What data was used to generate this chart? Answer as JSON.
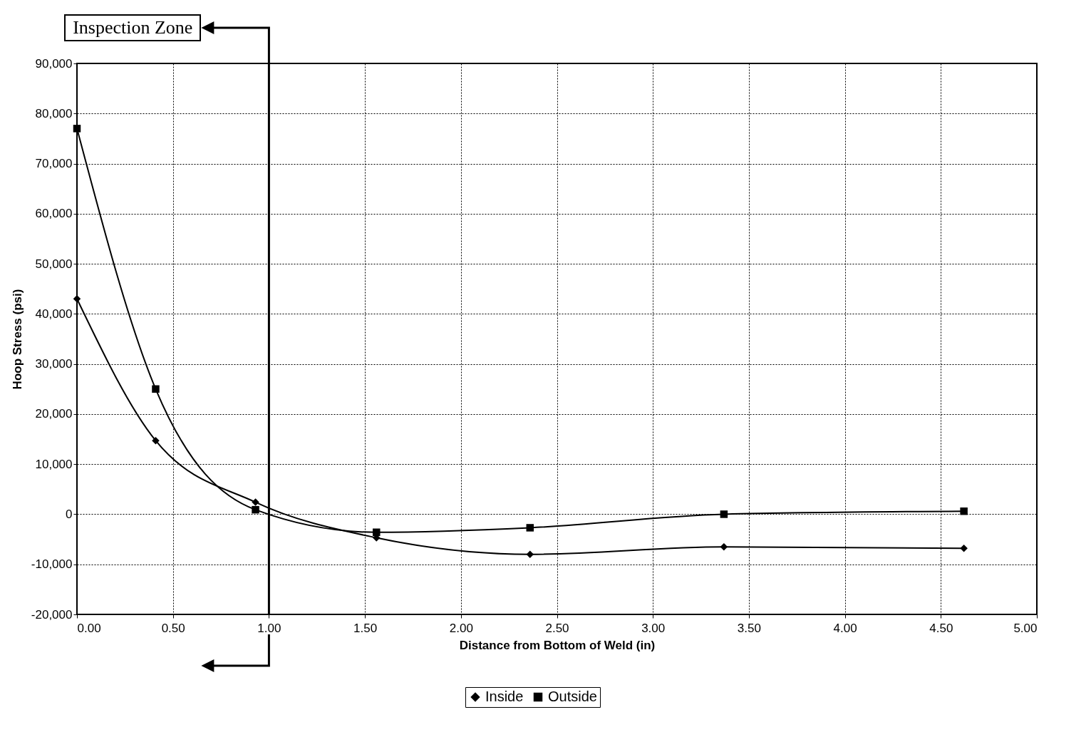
{
  "chart_data": {
    "type": "line",
    "xlabel": "Distance from Bottom of Weld (in)",
    "ylabel": "Hoop Stress (psi)",
    "series": [
      {
        "name": "Inside",
        "color": "#000000",
        "marker": "diamond",
        "x": [
          0,
          0.41,
          0.93,
          1.56,
          2.36,
          3.37,
          4.62
        ],
        "values": [
          43000,
          14700,
          2400,
          -4700,
          -8000,
          -6500,
          -6800
        ]
      },
      {
        "name": "Outside",
        "color": "#000000",
        "marker": "square",
        "x": [
          0,
          0.41,
          0.93,
          1.56,
          2.36,
          3.37,
          4.62
        ],
        "values": [
          77000,
          25000,
          900,
          -3600,
          -2700,
          0,
          600
        ]
      }
    ],
    "xlim": [
      0,
      5
    ],
    "xticks": [
      {
        "value": 0,
        "label": "0.00"
      },
      {
        "value": 0.5,
        "label": "0.50"
      },
      {
        "value": 1,
        "label": "1.00"
      },
      {
        "value": 1.5,
        "label": "1.50"
      },
      {
        "value": 2,
        "label": "2.00"
      },
      {
        "value": 2.5,
        "label": "2.50"
      },
      {
        "value": 3,
        "label": "3.00"
      },
      {
        "value": 3.5,
        "label": "3.50"
      },
      {
        "value": 4,
        "label": "4.00"
      },
      {
        "value": 4.5,
        "label": "4.50"
      },
      {
        "value": 5,
        "label": "5.00"
      }
    ],
    "ylim": [
      -20000,
      90000
    ],
    "yticks": [
      {
        "value": -20000,
        "label": "-20,000"
      },
      {
        "value": -10000,
        "label": "-10,000"
      },
      0,
      {
        "value": 10000,
        "label": "10,000"
      },
      {
        "value": 20000,
        "label": "20,000"
      },
      {
        "value": 30000,
        "label": "30,000"
      },
      {
        "value": 40000,
        "label": "40,000"
      },
      {
        "value": 50000,
        "label": "50,000"
      },
      {
        "value": 60000,
        "label": "60,000"
      },
      {
        "value": 70000,
        "label": "70,000"
      },
      {
        "value": 80000,
        "label": "80,000"
      },
      {
        "value": 90000,
        "label": "90,000"
      }
    ],
    "ref_lines": [
      {
        "axis": "x",
        "value": 1,
        "label": "Inspection Zone",
        "color": "#000000"
      }
    ],
    "grid": true,
    "legend": "bottom",
    "line_style": "solid"
  }
}
